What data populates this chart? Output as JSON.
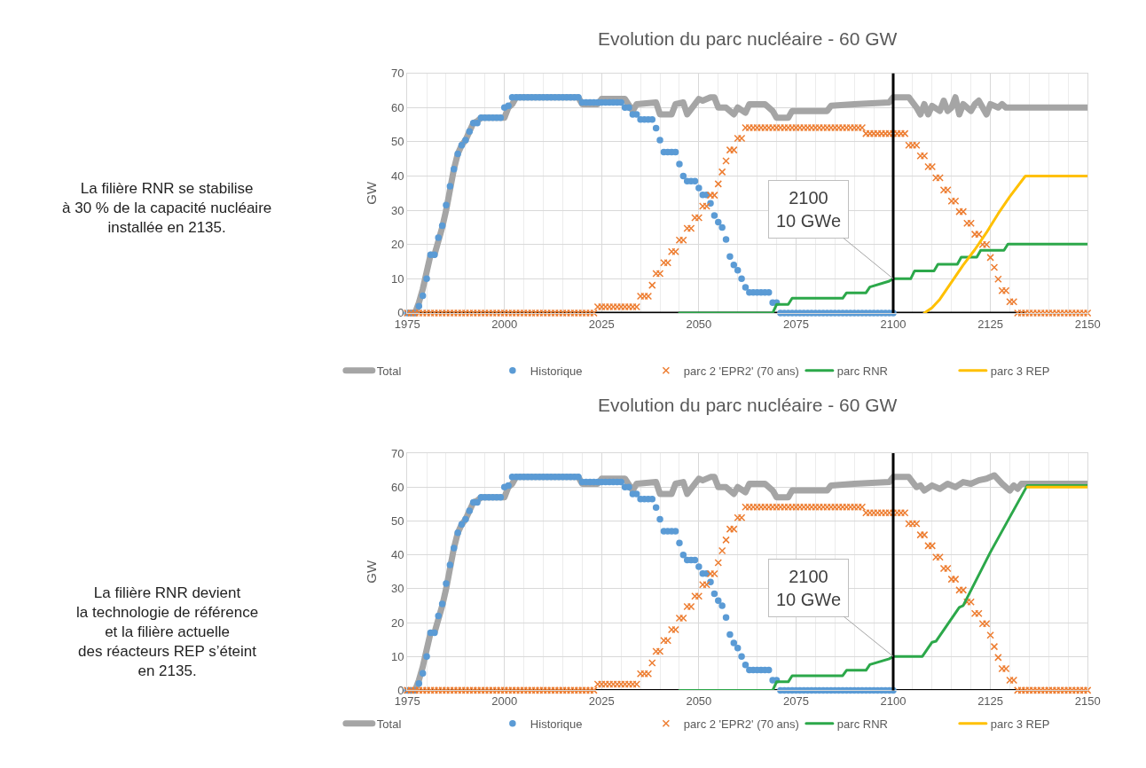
{
  "chart_data": [
    {
      "type": "other",
      "annotations": [
        "La filière RNR se stabilise\nà 30 % de la capacité nucléaire\ninstallée en 2135."
      ]
    },
    {
      "type": "line",
      "title": "Evolution du parc nucléaire - 60 GW",
      "ylabel": "GW",
      "x": [
        1975,
        1976,
        1977,
        1978,
        1979,
        1980,
        1981,
        1982,
        1983,
        1984,
        1985,
        1986,
        1987,
        1988,
        1989,
        1990,
        1991,
        1992,
        1993,
        1994,
        1995,
        1996,
        1997,
        1998,
        1999,
        2000,
        2001,
        2002,
        2003,
        2004,
        2005,
        2006,
        2007,
        2008,
        2009,
        2010,
        2011,
        2012,
        2013,
        2014,
        2015,
        2016,
        2017,
        2018,
        2019,
        2020,
        2021,
        2022,
        2023,
        2024,
        2025,
        2026,
        2027,
        2028,
        2029,
        2030,
        2031,
        2032,
        2033,
        2034,
        2035,
        2036,
        2037,
        2038,
        2039,
        2040,
        2041,
        2042,
        2043,
        2044,
        2045,
        2046,
        2047,
        2048,
        2049,
        2050,
        2051,
        2052,
        2053,
        2054,
        2055,
        2056,
        2057,
        2058,
        2059,
        2060,
        2061,
        2062,
        2063,
        2064,
        2065,
        2066,
        2067,
        2068,
        2069,
        2070,
        2071,
        2072,
        2073,
        2074,
        2075,
        2076,
        2077,
        2078,
        2079,
        2080,
        2081,
        2082,
        2083,
        2084,
        2085,
        2086,
        2087,
        2088,
        2089,
        2090,
        2091,
        2092,
        2093,
        2094,
        2095,
        2096,
        2097,
        2098,
        2099,
        2100,
        2101,
        2102,
        2103,
        2104,
        2105,
        2106,
        2107,
        2108,
        2109,
        2110,
        2111,
        2112,
        2113,
        2114,
        2115,
        2116,
        2117,
        2118,
        2119,
        2120,
        2121,
        2122,
        2123,
        2124,
        2125,
        2126,
        2127,
        2128,
        2129,
        2130,
        2131,
        2132,
        2133,
        2134,
        2135,
        2136,
        2137,
        2138,
        2139,
        2140,
        2141,
        2142,
        2143,
        2144,
        2145,
        2146,
        2147,
        2148,
        2149,
        2150
      ],
      "series": [
        {
          "name": "Total",
          "type": "line",
          "color": "#a5a5a5",
          "x": [
            1975,
            1977,
            1978,
            1979,
            1980,
            1981,
            1982,
            1983,
            1984,
            1985,
            1986,
            1987,
            1988,
            1989,
            1990,
            1991,
            1992,
            1993,
            1994,
            2000,
            2001,
            2002,
            2003,
            2019,
            2020,
            2024,
            2025,
            2031,
            2033,
            2034,
            2039,
            2040,
            2043,
            2044,
            2046,
            2047,
            2049,
            2050,
            2051,
            2053,
            2054,
            2055,
            2057,
            2059,
            2060,
            2062,
            2063,
            2067,
            2069,
            2070,
            2073,
            2074,
            2083,
            2084,
            2090,
            2099,
            2100,
            2104,
            2106,
            2107,
            2108,
            2109,
            2110,
            2112,
            2113,
            2114,
            2115,
            2116,
            2117,
            2118,
            2120,
            2121,
            2122,
            2124,
            2125,
            2127,
            2128,
            2129,
            2130,
            2150
          ],
          "values": [
            0,
            0,
            3,
            7,
            12,
            17,
            17,
            21,
            25,
            30,
            36,
            42,
            46.5,
            49,
            50.5,
            53,
            55.5,
            56,
            57,
            57,
            60,
            61,
            63,
            63,
            61,
            61,
            62.5,
            62.5,
            59,
            61,
            61.5,
            58,
            58,
            61,
            61.5,
            58,
            61,
            62.5,
            62,
            63,
            63,
            60,
            60,
            58,
            60,
            58.5,
            61,
            61,
            59,
            57,
            57,
            59,
            59,
            60.5,
            61,
            61.5,
            63,
            63,
            60,
            58,
            61,
            58,
            60.5,
            59,
            62,
            59,
            60,
            63,
            58,
            61,
            59,
            61,
            62,
            58,
            61,
            60,
            61,
            60,
            60,
            60
          ]
        },
        {
          "type": "line",
          "color": "#000000",
          "x": [
            1977,
            2134
          ],
          "values": [
            0,
            0
          ]
        },
        {
          "name": "Historique",
          "type": "scatter",
          "marker": "circle",
          "color": "#5b9bd5",
          "values": [
            0,
            0,
            0,
            2,
            5,
            10,
            17,
            17,
            22,
            25.5,
            31.5,
            37,
            42,
            46.5,
            49,
            50.5,
            53,
            55.5,
            55.5,
            57,
            57,
            57,
            57,
            57,
            57,
            60,
            60.5,
            63,
            63,
            63,
            63,
            63,
            63,
            63,
            63,
            63,
            63,
            63,
            63,
            63,
            63,
            63,
            63,
            63,
            63,
            61.5,
            61.5,
            61.5,
            61.5,
            61.5,
            61.5,
            61.5,
            61.5,
            61.5,
            61.5,
            61.5,
            60,
            60,
            58,
            58,
            56.5,
            56.5,
            56.5,
            56.5,
            54,
            50.5,
            47,
            47,
            47,
            47,
            43.5,
            40,
            38.5,
            38.5,
            38.5,
            36.5,
            34.5,
            34.5,
            32,
            28.5,
            26.5,
            25,
            21.5,
            16.5,
            14,
            12.5,
            10,
            7.5,
            6,
            6,
            6,
            6,
            6,
            6,
            3,
            3,
            0,
            0,
            0,
            0,
            0,
            0,
            0,
            0,
            0,
            0,
            0,
            0,
            0,
            0,
            0,
            0,
            0,
            0,
            0,
            0,
            0,
            0,
            0,
            0,
            0,
            0,
            0,
            0,
            0,
            0,
            null,
            null,
            null,
            null,
            null,
            null,
            null,
            null,
            null,
            null,
            null,
            null,
            null,
            null,
            null,
            null,
            null,
            null,
            null,
            null,
            null,
            null,
            null,
            null,
            null,
            null,
            null,
            null,
            null,
            null,
            null,
            null,
            null,
            null,
            null,
            null,
            null,
            null,
            null,
            null,
            null,
            null,
            null,
            null,
            null,
            null,
            null,
            null,
            null,
            null
          ]
        },
        {
          "name": "parc 2 'EPR2' (70 ans)",
          "type": "scatter",
          "marker": "cross",
          "color": "#ed7d31",
          "values": [
            0,
            0,
            0,
            0,
            0,
            0,
            0,
            0,
            0,
            0,
            0,
            0,
            0,
            0,
            0,
            0,
            0,
            0,
            0,
            0,
            0,
            0,
            0,
            0,
            0,
            0,
            0,
            0,
            0,
            0,
            0,
            0,
            0,
            0,
            0,
            0,
            0,
            0,
            0,
            0,
            0,
            0,
            0,
            0,
            0,
            0,
            0,
            0,
            0,
            1.8,
            1.8,
            1.8,
            1.8,
            1.8,
            1.8,
            1.8,
            1.8,
            1.8,
            1.8,
            1.8,
            4.9,
            4.9,
            4.9,
            8.1,
            11.5,
            11.5,
            14.7,
            14.7,
            17.9,
            17.9,
            21.3,
            21.3,
            24.7,
            24.7,
            27.8,
            27.8,
            31.2,
            31.2,
            34.4,
            34.4,
            37.7,
            41.2,
            44.4,
            47.6,
            47.6,
            51,
            51,
            54.1,
            54.1,
            54.1,
            54.1,
            54.1,
            54.1,
            54.1,
            54.1,
            54.1,
            54.1,
            54.1,
            54.1,
            54.1,
            54.1,
            54.1,
            54.1,
            54.1,
            54.1,
            54.1,
            54.1,
            54.1,
            54.1,
            54.1,
            54.1,
            54.1,
            54.1,
            54.1,
            54.1,
            54.1,
            54.1,
            54.1,
            52.4,
            52.4,
            52.4,
            52.4,
            52.4,
            52.4,
            52.4,
            52.4,
            52.4,
            52.4,
            52.4,
            49,
            49,
            49,
            45.9,
            45.9,
            42.7,
            42.7,
            39.5,
            39.5,
            35.9,
            35.9,
            32.7,
            32.7,
            29.6,
            29.6,
            26.2,
            26.2,
            23,
            23,
            20,
            20,
            16.2,
            13.3,
            9.9,
            6.5,
            6.5,
            3.3,
            3.3,
            0,
            0,
            0,
            0,
            0,
            0,
            0,
            0,
            0,
            0,
            0,
            0,
            0,
            0,
            0,
            0,
            0,
            0,
            0
          ]
        },
        {
          "name": "parc RNR",
          "type": "line",
          "color": "#2ca84a",
          "x": [
            2045,
            2069,
            2070,
            2073,
            2074,
            2087,
            2088,
            2093,
            2094,
            2099,
            2100,
            2104.5,
            2105.5,
            2110.5,
            2111.5,
            2116.5,
            2117.5,
            2121.5,
            2122.5,
            2128.5,
            2129.5,
            2150
          ],
          "values": [
            0,
            0,
            2.5,
            2.5,
            4.3,
            4.3,
            5.9,
            5.9,
            7.6,
            9.3,
            10,
            10,
            12.3,
            12.3,
            14.2,
            14.2,
            16.3,
            16.3,
            18.3,
            18.3,
            20.1,
            20.1
          ]
        },
        {
          "name": "parc 3 REP",
          "type": "line",
          "color": "#ffc000",
          "x": [
            2108,
            2110,
            2112,
            2115,
            2118,
            2121,
            2124,
            2127,
            2130,
            2134,
            2150
          ],
          "values": [
            0,
            1.5,
            4,
            9,
            14,
            18.5,
            23.5,
            29,
            34,
            40,
            40
          ]
        }
      ],
      "xlim": [
        1975,
        2150
      ],
      "xticks": [
        1975,
        2000,
        2025,
        2050,
        2075,
        2100,
        2125,
        2150
      ],
      "ylim": [
        0,
        70
      ],
      "yticks": [
        0,
        10,
        20,
        30,
        40,
        50,
        60,
        70
      ],
      "grid": true,
      "legend": "bottom",
      "ref_lines": [
        {
          "axis": "x",
          "value": 2100,
          "color": "#000000"
        }
      ],
      "annotations": [
        {
          "text": "2100\n10 GWe",
          "x": 2100,
          "y": 10
        }
      ]
    },
    {
      "type": "other",
      "annotations": [
        "La filière RNR devient\nla technologie de référence\net la filière actuelle\ndes réacteurs REP s’éteint\nen 2135."
      ]
    },
    {
      "type": "line",
      "title": "Evolution du parc nucléaire - 60 GW",
      "ylabel": "GW",
      "x": [
        1975,
        1976,
        1977,
        1978,
        1979,
        1980,
        1981,
        1982,
        1983,
        1984,
        1985,
        1986,
        1987,
        1988,
        1989,
        1990,
        1991,
        1992,
        1993,
        1994,
        1995,
        1996,
        1997,
        1998,
        1999,
        2000,
        2001,
        2002,
        2003,
        2004,
        2005,
        2006,
        2007,
        2008,
        2009,
        2010,
        2011,
        2012,
        2013,
        2014,
        2015,
        2016,
        2017,
        2018,
        2019,
        2020,
        2021,
        2022,
        2023,
        2024,
        2025,
        2026,
        2027,
        2028,
        2029,
        2030,
        2031,
        2032,
        2033,
        2034,
        2035,
        2036,
        2037,
        2038,
        2039,
        2040,
        2041,
        2042,
        2043,
        2044,
        2045,
        2046,
        2047,
        2048,
        2049,
        2050,
        2051,
        2052,
        2053,
        2054,
        2055,
        2056,
        2057,
        2058,
        2059,
        2060,
        2061,
        2062,
        2063,
        2064,
        2065,
        2066,
        2067,
        2068,
        2069,
        2070,
        2071,
        2072,
        2073,
        2074,
        2075,
        2076,
        2077,
        2078,
        2079,
        2080,
        2081,
        2082,
        2083,
        2084,
        2085,
        2086,
        2087,
        2088,
        2089,
        2090,
        2091,
        2092,
        2093,
        2094,
        2095,
        2096,
        2097,
        2098,
        2099,
        2100,
        2101,
        2102,
        2103,
        2104,
        2105,
        2106,
        2107,
        2108,
        2109,
        2110,
        2111,
        2112,
        2113,
        2114,
        2115,
        2116,
        2117,
        2118,
        2119,
        2120,
        2121,
        2122,
        2123,
        2124,
        2125,
        2126,
        2127,
        2128,
        2129,
        2130,
        2131,
        2132,
        2133,
        2134,
        2135,
        2136,
        2137,
        2138,
        2139,
        2140,
        2141,
        2142,
        2143,
        2144,
        2145,
        2146,
        2147,
        2148,
        2149,
        2150
      ],
      "series": [
        {
          "name": "Total",
          "type": "line",
          "color": "#a5a5a5",
          "x": [
            1975,
            1977,
            1978,
            1979,
            1980,
            1981,
            1982,
            1983,
            1984,
            1985,
            1986,
            1987,
            1988,
            1989,
            1990,
            1991,
            1992,
            1993,
            1994,
            2000,
            2001,
            2002,
            2003,
            2019,
            2020,
            2024,
            2025,
            2031,
            2033,
            2034,
            2039,
            2040,
            2043,
            2044,
            2046,
            2047,
            2049,
            2050,
            2051,
            2053,
            2054,
            2055,
            2057,
            2059,
            2060,
            2062,
            2063,
            2067,
            2069,
            2070,
            2073,
            2074,
            2083,
            2084,
            2090,
            2099,
            2100,
            2104,
            2106,
            2107,
            2108,
            2110,
            2112,
            2114,
            2116,
            2118,
            2120,
            2122,
            2124,
            2126,
            2128,
            2130,
            2131,
            2132,
            2133,
            2150
          ],
          "values": [
            0,
            0,
            3,
            7,
            12,
            17,
            17,
            21,
            25,
            30,
            36,
            42,
            46.5,
            49,
            50.5,
            53,
            55.5,
            56,
            57,
            57,
            60,
            61,
            63,
            63,
            61,
            61,
            62.5,
            62.5,
            59,
            61,
            61.5,
            58,
            58,
            61,
            61.5,
            58,
            61,
            62.5,
            62,
            63,
            63,
            60,
            60,
            58,
            60,
            58.5,
            61,
            61,
            59,
            57,
            57,
            59,
            59,
            60.5,
            61,
            61.5,
            63,
            63,
            60,
            60.5,
            59,
            60.5,
            59.5,
            61,
            60,
            61.5,
            61,
            62,
            62.5,
            63.5,
            61,
            59,
            60.5,
            59.5,
            61,
            61
          ]
        },
        {
          "type": "line",
          "color": "#000000",
          "x": [
            1977,
            2134
          ],
          "values": [
            0,
            0
          ]
        },
        {
          "name": "Historique",
          "type": "scatter",
          "marker": "circle",
          "color": "#5b9bd5",
          "values": [
            0,
            0,
            0,
            2,
            5,
            10,
            17,
            17,
            22,
            25.5,
            31.5,
            37,
            42,
            46.5,
            49,
            50.5,
            53,
            55.5,
            55.5,
            57,
            57,
            57,
            57,
            57,
            57,
            60,
            60.5,
            63,
            63,
            63,
            63,
            63,
            63,
            63,
            63,
            63,
            63,
            63,
            63,
            63,
            63,
            63,
            63,
            63,
            63,
            61.5,
            61.5,
            61.5,
            61.5,
            61.5,
            61.5,
            61.5,
            61.5,
            61.5,
            61.5,
            61.5,
            60,
            60,
            58,
            58,
            56.5,
            56.5,
            56.5,
            56.5,
            54,
            50.5,
            47,
            47,
            47,
            47,
            43.5,
            40,
            38.5,
            38.5,
            38.5,
            36.5,
            34.5,
            34.5,
            32,
            28.5,
            26.5,
            25,
            21.5,
            16.5,
            14,
            12.5,
            10,
            7.5,
            6,
            6,
            6,
            6,
            6,
            6,
            3,
            3,
            0,
            0,
            0,
            0,
            0,
            0,
            0,
            0,
            0,
            0,
            0,
            0,
            0,
            0,
            0,
            0,
            0,
            0,
            0,
            0,
            0,
            0,
            0,
            0,
            0,
            0,
            0,
            0,
            0,
            0,
            null,
            null,
            null,
            null,
            null,
            null,
            null,
            null,
            null,
            null,
            null,
            null,
            null,
            null,
            null,
            null,
            null,
            null,
            null,
            null,
            null,
            null,
            null,
            null,
            null,
            null,
            null,
            null,
            null,
            null,
            null,
            null,
            null,
            null,
            null,
            null,
            null,
            null,
            null,
            null,
            null,
            null,
            null,
            null,
            null,
            null,
            null,
            null,
            null,
            null
          ]
        },
        {
          "name": "parc 2 'EPR2' (70 ans)",
          "type": "scatter",
          "marker": "cross",
          "color": "#ed7d31",
          "values": [
            0,
            0,
            0,
            0,
            0,
            0,
            0,
            0,
            0,
            0,
            0,
            0,
            0,
            0,
            0,
            0,
            0,
            0,
            0,
            0,
            0,
            0,
            0,
            0,
            0,
            0,
            0,
            0,
            0,
            0,
            0,
            0,
            0,
            0,
            0,
            0,
            0,
            0,
            0,
            0,
            0,
            0,
            0,
            0,
            0,
            0,
            0,
            0,
            0,
            1.8,
            1.8,
            1.8,
            1.8,
            1.8,
            1.8,
            1.8,
            1.8,
            1.8,
            1.8,
            1.8,
            4.9,
            4.9,
            4.9,
            8.1,
            11.5,
            11.5,
            14.7,
            14.7,
            17.9,
            17.9,
            21.3,
            21.3,
            24.7,
            24.7,
            27.8,
            27.8,
            31.2,
            31.2,
            34.4,
            34.4,
            37.7,
            41.2,
            44.4,
            47.6,
            47.6,
            51,
            51,
            54.1,
            54.1,
            54.1,
            54.1,
            54.1,
            54.1,
            54.1,
            54.1,
            54.1,
            54.1,
            54.1,
            54.1,
            54.1,
            54.1,
            54.1,
            54.1,
            54.1,
            54.1,
            54.1,
            54.1,
            54.1,
            54.1,
            54.1,
            54.1,
            54.1,
            54.1,
            54.1,
            54.1,
            54.1,
            54.1,
            54.1,
            52.4,
            52.4,
            52.4,
            52.4,
            52.4,
            52.4,
            52.4,
            52.4,
            52.4,
            52.4,
            52.4,
            49.2,
            49.2,
            49.2,
            45.9,
            45.9,
            42.7,
            42.7,
            39.3,
            39.3,
            36,
            36,
            32.8,
            32.8,
            29.6,
            29.6,
            26.1,
            26.1,
            22.7,
            22.7,
            19.7,
            19.7,
            16.3,
            12.9,
            9.7,
            6.4,
            6.4,
            3,
            3,
            0,
            0,
            0,
            0,
            0,
            0,
            0,
            0,
            0,
            0,
            0,
            0,
            0,
            0,
            0,
            0,
            0,
            0,
            0
          ]
        },
        {
          "name": "parc RNR",
          "type": "line",
          "color": "#2ca84a",
          "x": [
            2045,
            2069,
            2070,
            2073,
            2074,
            2087,
            2088,
            2093,
            2094,
            2099,
            2100,
            2107.5,
            2110,
            2111,
            2117,
            2118,
            2125,
            2134.5,
            2150
          ],
          "values": [
            0,
            0,
            2.5,
            2.5,
            4.3,
            4.3,
            5.9,
            5.9,
            7.6,
            9.3,
            10,
            10,
            14.2,
            14.5,
            24.5,
            25,
            40.8,
            60.5,
            60.5
          ]
        },
        {
          "name": "parc 3 REP",
          "type": "line",
          "color": "#ffc000",
          "x": [
            2134.5,
            2150
          ],
          "values": [
            60,
            60
          ]
        }
      ],
      "xlim": [
        1975,
        2150
      ],
      "xticks": [
        1975,
        2000,
        2025,
        2050,
        2075,
        2100,
        2125,
        2150
      ],
      "ylim": [
        0,
        70
      ],
      "yticks": [
        0,
        10,
        20,
        30,
        40,
        50,
        60,
        70
      ],
      "grid": true,
      "legend": "bottom",
      "ref_lines": [
        {
          "axis": "x",
          "value": 2100,
          "color": "#000000"
        }
      ],
      "annotations": [
        {
          "text": "2100\n10 GWe",
          "x": 2100,
          "y": 10
        }
      ]
    }
  ]
}
